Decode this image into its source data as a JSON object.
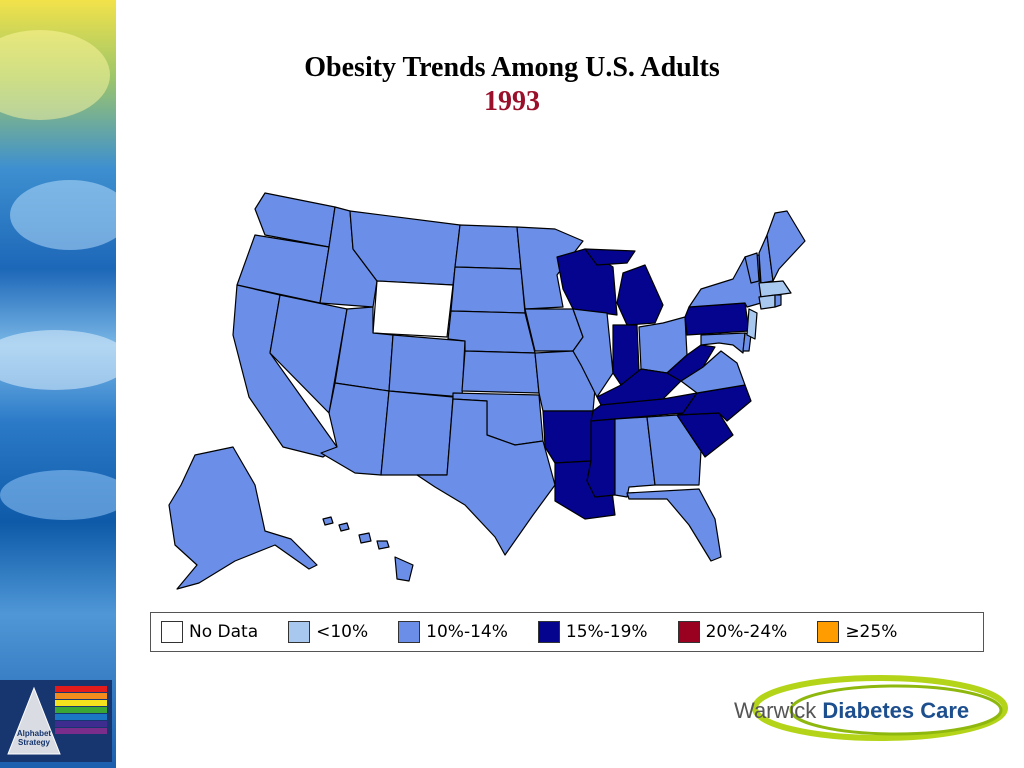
{
  "title": "Obesity Trends Among U.S. Adults",
  "year": "1993",
  "colors": {
    "no_data": "#ffffff",
    "lt10": "#a9c8f0",
    "10_14": "#6b8fe8",
    "15_19": "#04048f",
    "20_24": "#9a0020",
    "ge25": "#ff9c00",
    "title_year": "#9a0f2a"
  },
  "legend": [
    {
      "label": "No Data",
      "color": "#ffffff"
    },
    {
      "label": "<10%",
      "color": "#a9c8f0"
    },
    {
      "label": "10%-14%",
      "color": "#6b8fe8"
    },
    {
      "label": "15%-19%",
      "color": "#04048f"
    },
    {
      "label": "20%-24%",
      "color": "#9a0020"
    },
    {
      "label": "≥25%",
      "color": "#ff9c00"
    }
  ],
  "map": {
    "region": "United States",
    "categories_by_state": {
      "no_data": [
        "Wyoming"
      ],
      "lt10": [
        "Massachusetts",
        "New Jersey",
        "Connecticut"
      ],
      "15_19": [
        "Wisconsin",
        "Michigan",
        "Indiana",
        "Kentucky",
        "Tennessee",
        "West Virginia",
        "Pennsylvania",
        "North Carolina",
        "South Carolina",
        "Arkansas",
        "Louisiana",
        "Mississippi"
      ],
      "10_14": [
        "Washington",
        "Oregon",
        "California",
        "Nevada",
        "Idaho",
        "Montana",
        "Utah",
        "Arizona",
        "Colorado",
        "New Mexico",
        "North Dakota",
        "South Dakota",
        "Nebraska",
        "Kansas",
        "Oklahoma",
        "Texas",
        "Minnesota",
        "Iowa",
        "Missouri",
        "Illinois",
        "Ohio",
        "Alabama",
        "Georgia",
        "Florida",
        "Virginia",
        "Maryland",
        "Delaware",
        "New York",
        "Vermont",
        "New Hampshire",
        "Maine",
        "Rhode Island",
        "Alaska",
        "Hawaii"
      ]
    }
  },
  "brand": {
    "word1": "Warwick",
    "word2": "Diabetes Care"
  },
  "badge": {
    "line1": "Alphabet",
    "line2": "Strategy"
  }
}
